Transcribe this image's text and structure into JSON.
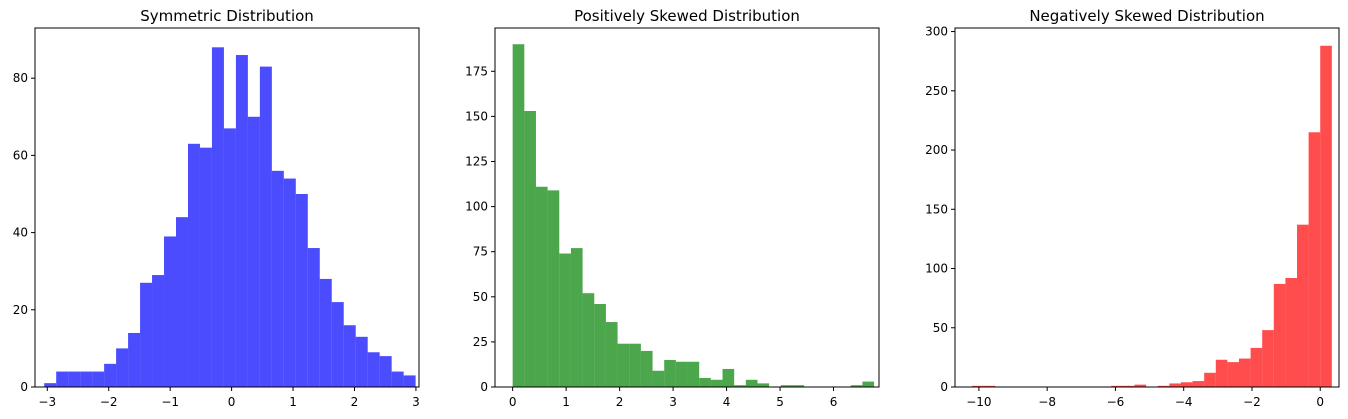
{
  "chart_data": [
    {
      "type": "bar",
      "title": "Symmetric Distribution",
      "xlabel": "",
      "ylabel": "",
      "color": "#0000ff",
      "alpha": 0.7,
      "xlim": [
        -3.2,
        3.05
      ],
      "ylim": [
        0,
        93
      ],
      "xticks": [
        -3,
        -2,
        -1,
        0,
        1,
        2,
        3
      ],
      "yticks": [
        0,
        20,
        40,
        60,
        80
      ],
      "bin_start": -3.05,
      "bin_width": 0.195,
      "values": [
        1,
        4,
        4,
        4,
        4,
        6,
        10,
        14,
        27,
        29,
        39,
        44,
        63,
        62,
        88,
        67,
        86,
        70,
        83,
        56,
        54,
        50,
        36,
        28,
        22,
        16,
        13,
        9,
        8,
        4,
        3
      ]
    },
    {
      "type": "bar",
      "title": "Positively Skewed Distribution",
      "xlabel": "",
      "ylabel": "",
      "color": "#008000",
      "alpha": 0.7,
      "xlim": [
        -0.33,
        6.85
      ],
      "ylim": [
        0,
        199
      ],
      "xticks": [
        0,
        1,
        2,
        3,
        4,
        5,
        6
      ],
      "yticks": [
        0,
        25,
        50,
        75,
        100,
        125,
        150,
        175
      ],
      "bin_start": 0.0,
      "bin_width": 0.218,
      "values": [
        190,
        153,
        111,
        109,
        74,
        77,
        52,
        46,
        36,
        24,
        24,
        20,
        9,
        15,
        14,
        14,
        5,
        4,
        10,
        1,
        4,
        2,
        0,
        1,
        1,
        0,
        0,
        0,
        0,
        1,
        3
      ]
    },
    {
      "type": "bar",
      "title": "Negatively Skewed Distribution",
      "xlabel": "",
      "ylabel": "",
      "color": "#ff0000",
      "alpha": 0.7,
      "xlim": [
        -10.7,
        0.55
      ],
      "ylim": [
        0,
        303
      ],
      "xticks": [
        -10,
        -8,
        -6,
        -4,
        -2,
        0
      ],
      "yticks": [
        0,
        50,
        100,
        150,
        200,
        250,
        300
      ],
      "bin_start": -10.2,
      "bin_width": 0.34,
      "values": [
        1,
        1,
        0,
        0,
        0,
        0,
        0,
        0,
        0,
        0,
        0,
        0,
        1,
        1,
        2,
        0,
        1,
        3,
        4,
        5,
        12,
        23,
        21,
        24,
        33,
        48,
        87,
        92,
        137,
        215,
        288
      ]
    }
  ]
}
